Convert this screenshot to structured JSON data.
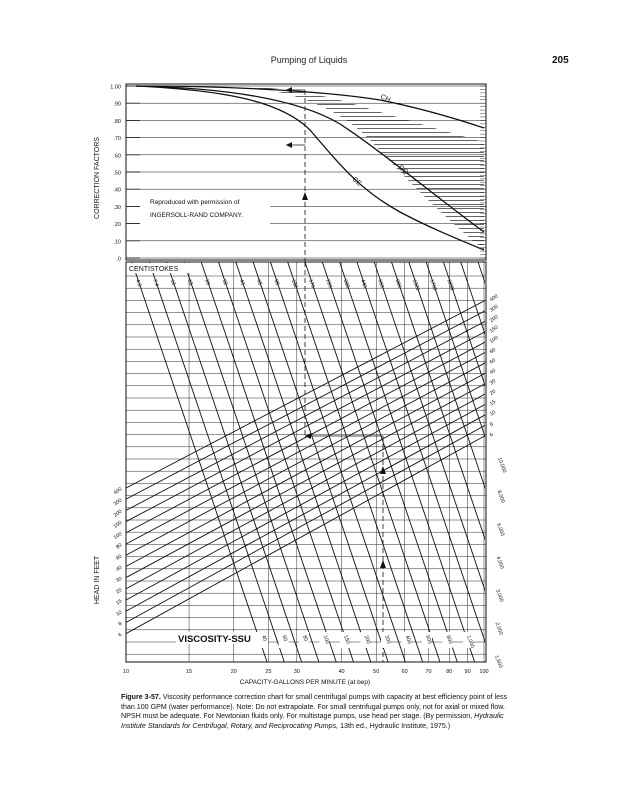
{
  "header": {
    "title": "Pumping of Liquids",
    "page_number": "205"
  },
  "upper_chart": {
    "y_axis_label": "CORRECTION FACTORS",
    "y_ticks": [
      "1.00",
      ".90",
      ".80",
      ".70",
      ".60",
      ".50",
      ".40",
      ".30",
      ".20",
      ".10",
      ".0"
    ],
    "curve_labels": [
      "CH",
      "CQ",
      "CE"
    ],
    "permission_line1": "Reproduced with permission of",
    "permission_line2": "INGERSOLL-RAND COMPANY."
  },
  "lower_chart": {
    "centistokes_label": "CENTISTOKES",
    "centistokes_values": [
      "4.3",
      "7.4",
      "10",
      "15",
      "20",
      "32",
      "43",
      "65",
      "88",
      "132",
      "176",
      "220",
      "330",
      "440",
      "660",
      "880",
      "1320",
      "1760",
      "2200"
    ],
    "head_axis_label": "HEAD IN FEET",
    "head_ticks": [
      "400",
      "300",
      "200",
      "150",
      "100",
      "80",
      "60",
      "40",
      "30",
      "20",
      "15",
      "10",
      "8",
      "6"
    ],
    "right_capacity_ticks": [
      "400",
      "300",
      "200",
      "150",
      "100",
      "80",
      "60",
      "40",
      "30",
      "20",
      "15",
      "10",
      "8",
      "6"
    ],
    "right_viscosity_ticks": [
      "10,000",
      "8,000",
      "6,000",
      "4,000",
      "3,000",
      "2,000",
      "1,500"
    ],
    "viscosity_label": "VISCOSITY-SSU",
    "viscosity_values": [
      "40",
      "60",
      "80",
      "100",
      "150",
      "200",
      "300",
      "400",
      "600",
      "800",
      "1,000"
    ],
    "x_ticks": [
      "10",
      "15",
      "20",
      "25",
      "30",
      "40",
      "50",
      "60",
      "70",
      "80",
      "90",
      "100"
    ],
    "x_axis_label": "CAPACITY-GALLONS PER MINUTE (at bep)"
  },
  "caption": {
    "figure_label": "Figure 3-57.",
    "text_before_italic": " Viscosity performance correction chart for small centrifugal pumps with capacity at best efficiency point of less than 100 GPM (water performance). Note: Do not extrapolate. For small centrifugal pumps only, not for axial or mixed flow. NPSH must be adequate. For Newtonian fluids only. For multistage pumps, use head per stage. (By permission, ",
    "italic_source": "Hydraulic Institute Standards for Centrifugal, Rotary, and Reciprocating Pumps,",
    "text_after_italic": " 13th ed., Hydraulic Institute, 1975.)"
  }
}
